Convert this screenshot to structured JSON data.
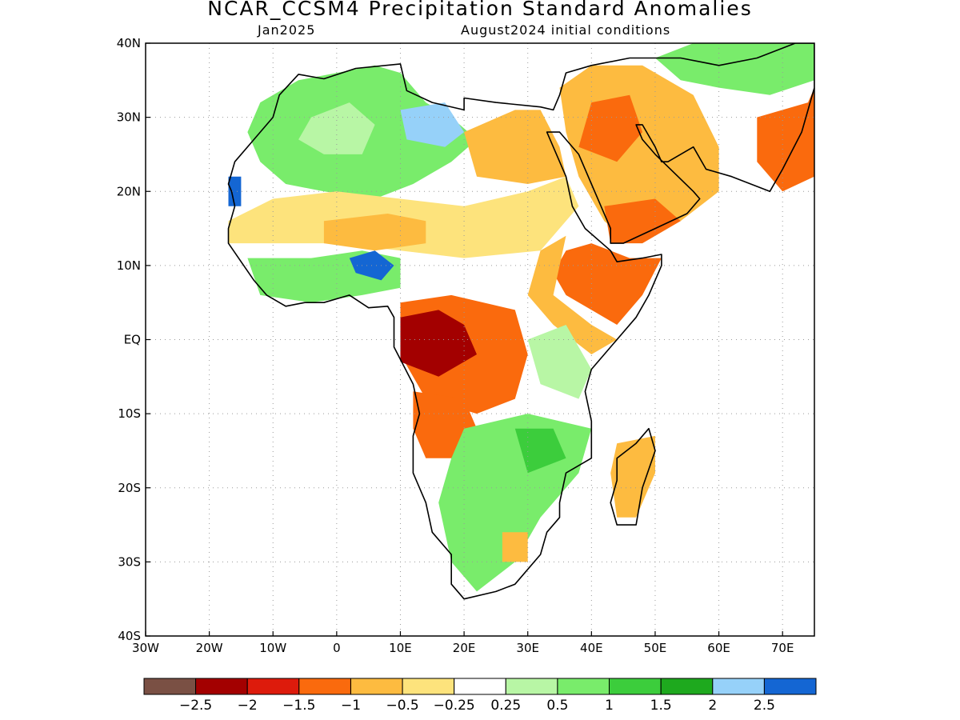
{
  "title": "NCAR_CCSM4 Precipitation Standard Anomalies",
  "subtitle_left": "Jan2025",
  "subtitle_right": "August2024 initial conditions",
  "chart_data": {
    "type": "heatmap",
    "xlim": [
      -30,
      75
    ],
    "ylim": [
      -40,
      40
    ],
    "grid": true,
    "x_ticks": [
      {
        "v": -30,
        "label": "30W"
      },
      {
        "v": -20,
        "label": "20W"
      },
      {
        "v": -10,
        "label": "10W"
      },
      {
        "v": 0,
        "label": "0"
      },
      {
        "v": 10,
        "label": "10E"
      },
      {
        "v": 20,
        "label": "20E"
      },
      {
        "v": 30,
        "label": "30E"
      },
      {
        "v": 40,
        "label": "40E"
      },
      {
        "v": 50,
        "label": "50E"
      },
      {
        "v": 60,
        "label": "60E"
      },
      {
        "v": 70,
        "label": "70E"
      }
    ],
    "y_ticks": [
      {
        "v": 40,
        "label": "40N"
      },
      {
        "v": 30,
        "label": "30N"
      },
      {
        "v": 20,
        "label": "20N"
      },
      {
        "v": 10,
        "label": "10N"
      },
      {
        "v": 0,
        "label": "EQ"
      },
      {
        "v": -10,
        "label": "10S"
      },
      {
        "v": -20,
        "label": "20S"
      },
      {
        "v": -30,
        "label": "30S"
      },
      {
        "v": -40,
        "label": "40S"
      }
    ],
    "colorbar": {
      "colors": [
        "#7a5044",
        "#a30000",
        "#dd1b0c",
        "#fa6a0d",
        "#fdbb40",
        "#fde37c",
        "#ffffff",
        "#b8f6a5",
        "#79ec6b",
        "#3ccd3c",
        "#1ea91e",
        "#96d1f9",
        "#1466d3"
      ],
      "labels": [
        "−2.5",
        "−2",
        "−1.5",
        "−1",
        "−0.5",
        "−0.25",
        "0.25",
        "0.5",
        "1",
        "1.5",
        "2",
        "2.5"
      ]
    },
    "anomaly_regions": [
      {
        "name": "north-africa-green",
        "value": 0.75,
        "color": "#79ec6b",
        "pts": [
          [
            -12,
            32
          ],
          [
            -6,
            35
          ],
          [
            0,
            36
          ],
          [
            6,
            37
          ],
          [
            10,
            36
          ],
          [
            14,
            32
          ],
          [
            18,
            30
          ],
          [
            22,
            27
          ],
          [
            18,
            24
          ],
          [
            12,
            21
          ],
          [
            6,
            19
          ],
          [
            -2,
            20
          ],
          [
            -8,
            21
          ],
          [
            -12,
            24
          ],
          [
            -14,
            28
          ]
        ]
      },
      {
        "name": "algeria-light",
        "value": 0.4,
        "color": "#b8f6a5",
        "pts": [
          [
            -4,
            30
          ],
          [
            2,
            32
          ],
          [
            6,
            29
          ],
          [
            4,
            25
          ],
          [
            -2,
            25
          ],
          [
            -6,
            27
          ]
        ]
      },
      {
        "name": "libya-blue",
        "value": 2.6,
        "color": "#1466d3",
        "pts": [
          [
            12,
            30
          ],
          [
            16,
            31
          ],
          [
            18,
            29
          ],
          [
            16,
            27
          ],
          [
            13,
            27
          ]
        ]
      },
      {
        "name": "libya-lightblue",
        "value": 2.2,
        "color": "#96d1f9",
        "pts": [
          [
            10,
            31
          ],
          [
            17,
            32
          ],
          [
            20,
            28
          ],
          [
            17,
            26
          ],
          [
            11,
            27
          ]
        ]
      },
      {
        "name": "mauritania-blue",
        "value": 2.6,
        "color": "#1466d3",
        "pts": [
          [
            -17,
            22
          ],
          [
            -15,
            22
          ],
          [
            -15,
            18
          ],
          [
            -17,
            18
          ]
        ]
      },
      {
        "name": "sahel-yellow",
        "value": -0.4,
        "color": "#fde37c",
        "pts": [
          [
            -17,
            16
          ],
          [
            -10,
            19
          ],
          [
            0,
            20
          ],
          [
            10,
            19
          ],
          [
            20,
            18
          ],
          [
            30,
            20
          ],
          [
            36,
            22
          ],
          [
            38,
            18
          ],
          [
            32,
            12
          ],
          [
            20,
            11
          ],
          [
            10,
            12
          ],
          [
            0,
            13
          ],
          [
            -10,
            13
          ],
          [
            -17,
            13
          ]
        ]
      },
      {
        "name": "sahel-orange",
        "value": -0.8,
        "color": "#fdbb40",
        "pts": [
          [
            -2,
            16
          ],
          [
            8,
            17
          ],
          [
            14,
            16
          ],
          [
            14,
            13
          ],
          [
            6,
            12
          ],
          [
            -2,
            13
          ]
        ]
      },
      {
        "name": "egypt-orange",
        "value": -0.8,
        "color": "#fdbb40",
        "pts": [
          [
            20,
            28
          ],
          [
            28,
            31
          ],
          [
            32,
            31
          ],
          [
            35,
            26
          ],
          [
            36,
            22
          ],
          [
            30,
            21
          ],
          [
            22,
            22
          ]
        ]
      },
      {
        "name": "arabia-orange",
        "value": -0.9,
        "color": "#fdbb40",
        "pts": [
          [
            35,
            34
          ],
          [
            40,
            37
          ],
          [
            48,
            37
          ],
          [
            56,
            33
          ],
          [
            60,
            26
          ],
          [
            60,
            20
          ],
          [
            54,
            16
          ],
          [
            46,
            13
          ],
          [
            42,
            16
          ],
          [
            38,
            22
          ],
          [
            36,
            28
          ]
        ]
      },
      {
        "name": "arabia-deep",
        "value": -1.4,
        "color": "#fa6a0d",
        "pts": [
          [
            40,
            32
          ],
          [
            46,
            33
          ],
          [
            48,
            28
          ],
          [
            44,
            24
          ],
          [
            38,
            26
          ]
        ]
      },
      {
        "name": "yemen-deep",
        "value": -1.4,
        "color": "#fa6a0d",
        "pts": [
          [
            42,
            18
          ],
          [
            50,
            19
          ],
          [
            54,
            16
          ],
          [
            48,
            13
          ],
          [
            43,
            13
          ]
        ]
      },
      {
        "name": "india-deep",
        "value": -1.4,
        "color": "#fa6a0d",
        "pts": [
          [
            66,
            30
          ],
          [
            74,
            32
          ],
          [
            75,
            34
          ],
          [
            75,
            22
          ],
          [
            70,
            20
          ],
          [
            66,
            24
          ]
        ]
      },
      {
        "name": "central-asia-green",
        "value": 0.8,
        "color": "#79ec6b",
        "pts": [
          [
            50,
            38
          ],
          [
            56,
            40
          ],
          [
            75,
            40
          ],
          [
            75,
            35
          ],
          [
            68,
            33
          ],
          [
            60,
            34
          ],
          [
            54,
            35
          ]
        ]
      },
      {
        "name": "horn-orange",
        "value": -1.2,
        "color": "#fa6a0d",
        "pts": [
          [
            36,
            12
          ],
          [
            40,
            13
          ],
          [
            46,
            11
          ],
          [
            51,
            11
          ],
          [
            48,
            6
          ],
          [
            44,
            2
          ],
          [
            40,
            4
          ],
          [
            36,
            6
          ],
          [
            34,
            9
          ]
        ]
      },
      {
        "name": "horn-yellow",
        "value": -0.6,
        "color": "#fdbb40",
        "pts": [
          [
            32,
            12
          ],
          [
            36,
            14
          ],
          [
            34,
            6
          ],
          [
            40,
            2
          ],
          [
            44,
            0
          ],
          [
            40,
            -2
          ],
          [
            34,
            2
          ],
          [
            30,
            6
          ]
        ]
      },
      {
        "name": "west-africa-green",
        "value": 0.8,
        "color": "#79ec6b",
        "pts": [
          [
            -14,
            11
          ],
          [
            -4,
            11
          ],
          [
            4,
            12
          ],
          [
            10,
            11
          ],
          [
            10,
            7
          ],
          [
            4,
            6
          ],
          [
            -4,
            5
          ],
          [
            -12,
            6
          ]
        ]
      },
      {
        "name": "west-africa-blue",
        "value": 2.4,
        "color": "#1466d3",
        "pts": [
          [
            2,
            11
          ],
          [
            6,
            12
          ],
          [
            9,
            10
          ],
          [
            7,
            8
          ],
          [
            3,
            9
          ]
        ]
      },
      {
        "name": "congo-orange",
        "value": -1.1,
        "color": "#fa6a0d",
        "pts": [
          [
            10,
            5
          ],
          [
            18,
            6
          ],
          [
            28,
            4
          ],
          [
            30,
            -2
          ],
          [
            28,
            -8
          ],
          [
            22,
            -10
          ],
          [
            14,
            -8
          ],
          [
            10,
            -2
          ]
        ]
      },
      {
        "name": "congo-red",
        "value": -1.9,
        "color": "#a30000",
        "pts": [
          [
            10,
            3
          ],
          [
            16,
            4
          ],
          [
            20,
            2
          ],
          [
            22,
            -2
          ],
          [
            16,
            -5
          ],
          [
            10,
            -3
          ]
        ]
      },
      {
        "name": "angola-orange",
        "value": -1.2,
        "color": "#fa6a0d",
        "pts": [
          [
            12,
            -7
          ],
          [
            20,
            -8
          ],
          [
            22,
            -12
          ],
          [
            20,
            -16
          ],
          [
            14,
            -16
          ],
          [
            12,
            -12
          ]
        ]
      },
      {
        "name": "east-africa-light",
        "value": 0.4,
        "color": "#b8f6a5",
        "pts": [
          [
            30,
            0
          ],
          [
            36,
            2
          ],
          [
            40,
            -4
          ],
          [
            38,
            -8
          ],
          [
            32,
            -6
          ]
        ]
      },
      {
        "name": "southern-green",
        "value": 0.9,
        "color": "#79ec6b",
        "pts": [
          [
            20,
            -12
          ],
          [
            30,
            -10
          ],
          [
            40,
            -12
          ],
          [
            38,
            -18
          ],
          [
            32,
            -24
          ],
          [
            28,
            -30
          ],
          [
            22,
            -34
          ],
          [
            18,
            -30
          ],
          [
            16,
            -22
          ],
          [
            18,
            -16
          ]
        ]
      },
      {
        "name": "southern-dark",
        "value": 1.4,
        "color": "#3ccd3c",
        "pts": [
          [
            28,
            -12
          ],
          [
            34,
            -12
          ],
          [
            36,
            -16
          ],
          [
            30,
            -18
          ]
        ]
      },
      {
        "name": "south-africa-orange",
        "value": -0.8,
        "color": "#fdbb40",
        "pts": [
          [
            26,
            -26
          ],
          [
            30,
            -26
          ],
          [
            30,
            -30
          ],
          [
            26,
            -30
          ]
        ]
      },
      {
        "name": "madagascar-orange",
        "value": -0.8,
        "color": "#fdbb40",
        "pts": [
          [
            44,
            -14
          ],
          [
            50,
            -13
          ],
          [
            50,
            -18
          ],
          [
            47,
            -24
          ],
          [
            44,
            -24
          ],
          [
            43,
            -18
          ]
        ]
      }
    ],
    "outline": [
      [
        -17,
        21
      ],
      [
        -16,
        24
      ],
      [
        -13,
        27
      ],
      [
        -10,
        30
      ],
      [
        -9,
        33
      ],
      [
        -6,
        35.8
      ],
      [
        -2,
        35.2
      ],
      [
        3,
        36.6
      ],
      [
        10,
        37.2
      ],
      [
        11,
        33.6
      ],
      [
        15,
        32
      ],
      [
        20,
        31
      ],
      [
        20,
        32.6
      ],
      [
        25,
        32
      ],
      [
        32,
        31.4
      ],
      [
        34,
        31
      ],
      [
        35,
        33
      ],
      [
        36,
        36
      ],
      [
        40,
        37
      ],
      [
        46,
        38
      ],
      [
        54,
        38
      ],
      [
        60,
        37
      ],
      [
        66,
        38
      ],
      [
        72,
        40
      ],
      [
        75,
        40
      ],
      [
        75,
        34
      ],
      [
        73,
        28
      ],
      [
        70,
        23
      ],
      [
        68,
        20
      ],
      [
        62,
        22
      ],
      [
        58,
        23
      ],
      [
        56,
        26
      ],
      [
        52,
        24
      ],
      [
        51,
        24
      ],
      [
        50,
        26
      ],
      [
        48,
        29
      ],
      [
        47,
        29
      ],
      [
        48,
        27
      ],
      [
        50,
        25
      ],
      [
        56,
        20
      ],
      [
        57,
        19
      ],
      [
        55,
        17
      ],
      [
        50,
        15
      ],
      [
        45,
        13
      ],
      [
        43,
        13
      ],
      [
        43,
        15
      ],
      [
        40,
        21
      ],
      [
        38,
        25
      ],
      [
        35,
        28
      ],
      [
        33,
        28
      ],
      [
        34,
        26
      ],
      [
        36,
        22
      ],
      [
        37,
        18
      ],
      [
        39,
        15
      ],
      [
        43,
        12
      ],
      [
        44,
        10.5
      ],
      [
        48,
        11
      ],
      [
        51,
        11.5
      ],
      [
        51,
        10
      ],
      [
        49,
        6
      ],
      [
        47,
        3
      ],
      [
        44,
        0
      ],
      [
        42,
        -2
      ],
      [
        40,
        -4
      ],
      [
        39,
        -7
      ],
      [
        40,
        -11
      ],
      [
        40,
        -16
      ],
      [
        36,
        -18
      ],
      [
        35,
        -22
      ],
      [
        35,
        -24
      ],
      [
        33,
        -26
      ],
      [
        32,
        -29
      ],
      [
        28,
        -33
      ],
      [
        25,
        -34
      ],
      [
        20,
        -35
      ],
      [
        18,
        -33
      ],
      [
        18,
        -29
      ],
      [
        15,
        -26
      ],
      [
        14,
        -22
      ],
      [
        12,
        -18
      ],
      [
        12,
        -13
      ],
      [
        13,
        -10
      ],
      [
        12,
        -6
      ],
      [
        9,
        -1
      ],
      [
        9,
        3
      ],
      [
        8,
        4.5
      ],
      [
        5,
        4.3
      ],
      [
        2,
        6
      ],
      [
        -2,
        5
      ],
      [
        -5,
        5
      ],
      [
        -8,
        4.5
      ],
      [
        -11,
        6
      ],
      [
        -13,
        8
      ],
      [
        -15,
        10.5
      ],
      [
        -17,
        13
      ],
      [
        -17,
        15
      ],
      [
        -16,
        18
      ],
      [
        -16.5,
        20
      ]
    ],
    "madagascar": [
      [
        49,
        -12
      ],
      [
        50,
        -15
      ],
      [
        48,
        -20
      ],
      [
        47,
        -25
      ],
      [
        44,
        -25
      ],
      [
        43,
        -22
      ],
      [
        44,
        -19
      ],
      [
        44,
        -16
      ],
      [
        47,
        -14
      ]
    ]
  }
}
